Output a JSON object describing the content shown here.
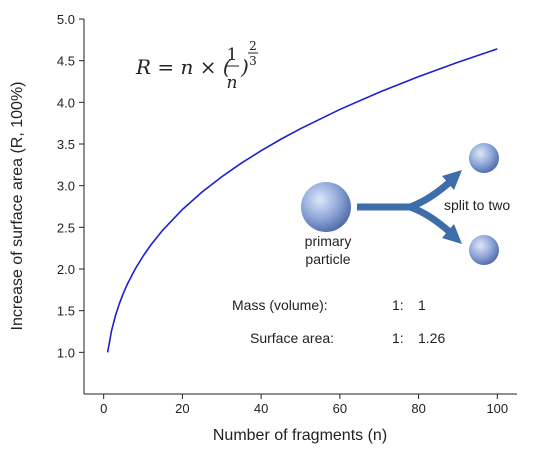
{
  "chart_data": {
    "type": "line",
    "x_label": "Number of fragments (n)",
    "y_label": "Increase of surface area (R, 100%)",
    "formula": {
      "lhs": "R = n × (",
      "numerator": "1",
      "denominator": "n",
      "close": ")",
      "exp_num": "2",
      "exp_den": "3"
    },
    "annotations": {
      "primary": "primary",
      "particle": "particle",
      "split": "split to two",
      "mass_label": "Mass (volume):",
      "mass_a": "1:",
      "mass_b": "1",
      "surface_label": "Surface area:",
      "surface_a": "1:",
      "surface_b": "1.26"
    },
    "x": [
      1,
      2,
      3,
      4,
      5,
      6,
      8,
      10,
      12,
      15,
      20,
      25,
      30,
      35,
      40,
      45,
      50,
      60,
      70,
      80,
      90,
      100
    ],
    "series": [
      {
        "color": "#1f1fd0",
        "values": [
          1,
          1.26,
          1.442,
          1.587,
          1.71,
          1.817,
          2,
          2.154,
          2.289,
          2.466,
          2.714,
          2.924,
          3.107,
          3.271,
          3.42,
          3.557,
          3.684,
          3.915,
          4.121,
          4.309,
          4.481,
          4.642
        ]
      }
    ],
    "xlim": [
      -5,
      105
    ],
    "xticks": [
      0,
      20,
      40,
      60,
      80,
      100
    ],
    "ylim": [
      0.5,
      5.0
    ],
    "yticks": [
      {
        "value": 1,
        "label": "1.0"
      },
      {
        "value": 1.5,
        "label": "1.5"
      },
      {
        "value": 2,
        "label": "2.0"
      },
      {
        "value": 2.5,
        "label": "2.5"
      },
      {
        "value": 3,
        "label": "3.0"
      },
      {
        "value": 3.5,
        "label": "3.5"
      },
      {
        "value": 4,
        "label": "4.0"
      },
      {
        "value": 4.5,
        "label": "4.5"
      },
      {
        "value": 5,
        "label": "5.0"
      }
    ]
  }
}
